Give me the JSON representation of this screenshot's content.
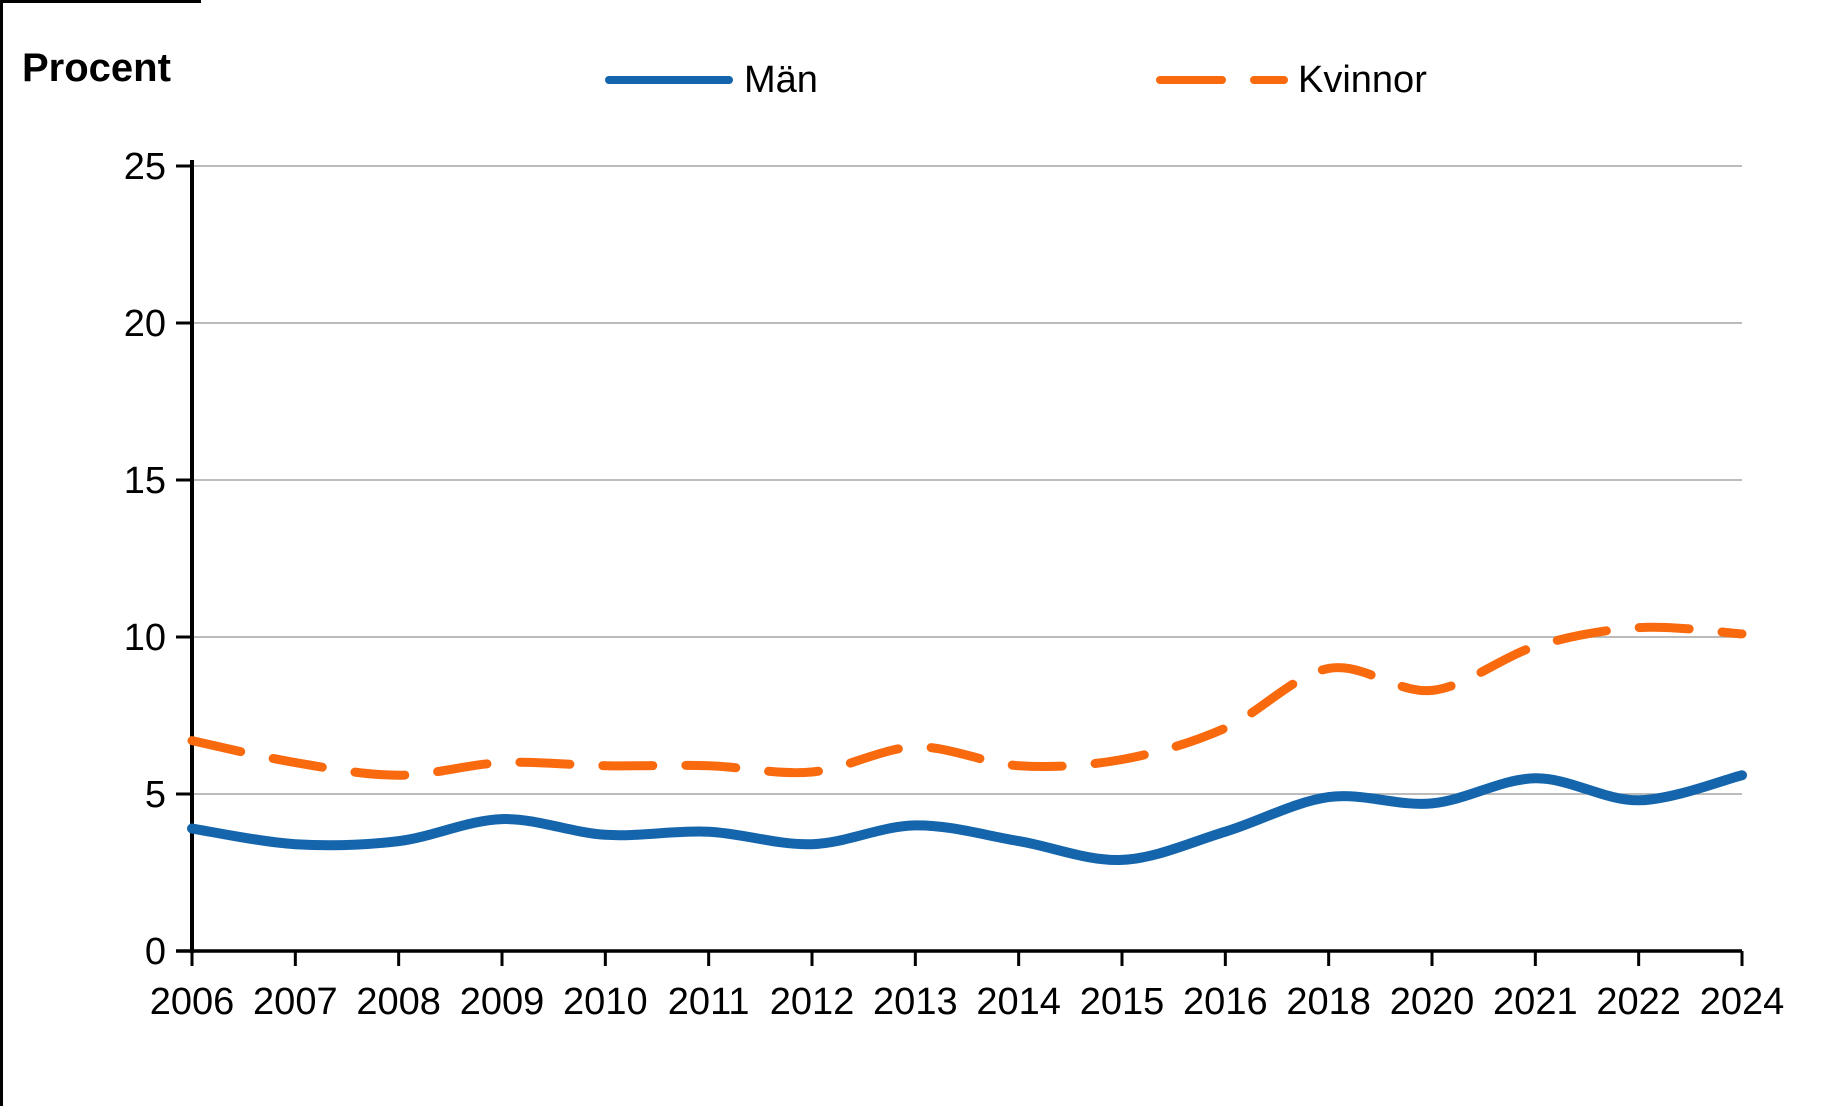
{
  "chart_data": {
    "type": "line",
    "title": "Procent",
    "categories": [
      "2006",
      "2007",
      "2008",
      "2009",
      "2010",
      "2011",
      "2012",
      "2013",
      "2014",
      "2015",
      "2016",
      "2018",
      "2020",
      "2021",
      "2022",
      "2024"
    ],
    "series": [
      {
        "name": "Män",
        "color": "#1565AC",
        "line_style": "solid",
        "values": [
          3.9,
          3.4,
          3.5,
          4.2,
          3.7,
          3.8,
          3.4,
          4.0,
          3.5,
          2.9,
          3.8,
          4.9,
          4.7,
          5.5,
          4.8,
          5.6
        ]
      },
      {
        "name": "Kvinnor",
        "color": "#F9690E",
        "line_style": "dashed",
        "values": [
          6.7,
          6.0,
          5.6,
          6.0,
          5.9,
          5.9,
          5.7,
          6.5,
          5.9,
          6.1,
          7.1,
          9.0,
          8.3,
          9.7,
          10.3,
          10.1
        ]
      }
    ],
    "xlabel": "",
    "ylabel": "Procent",
    "ylim": [
      0,
      25
    ],
    "ytick_step": 5,
    "yticks": [
      "0",
      "5",
      "10",
      "15",
      "20",
      "25"
    ],
    "grid": "horizontal-only",
    "gridline_color": "#A6A6A6",
    "axis_color": "#000000",
    "legend_position": "top-center",
    "curve": "smooth-spline"
  }
}
